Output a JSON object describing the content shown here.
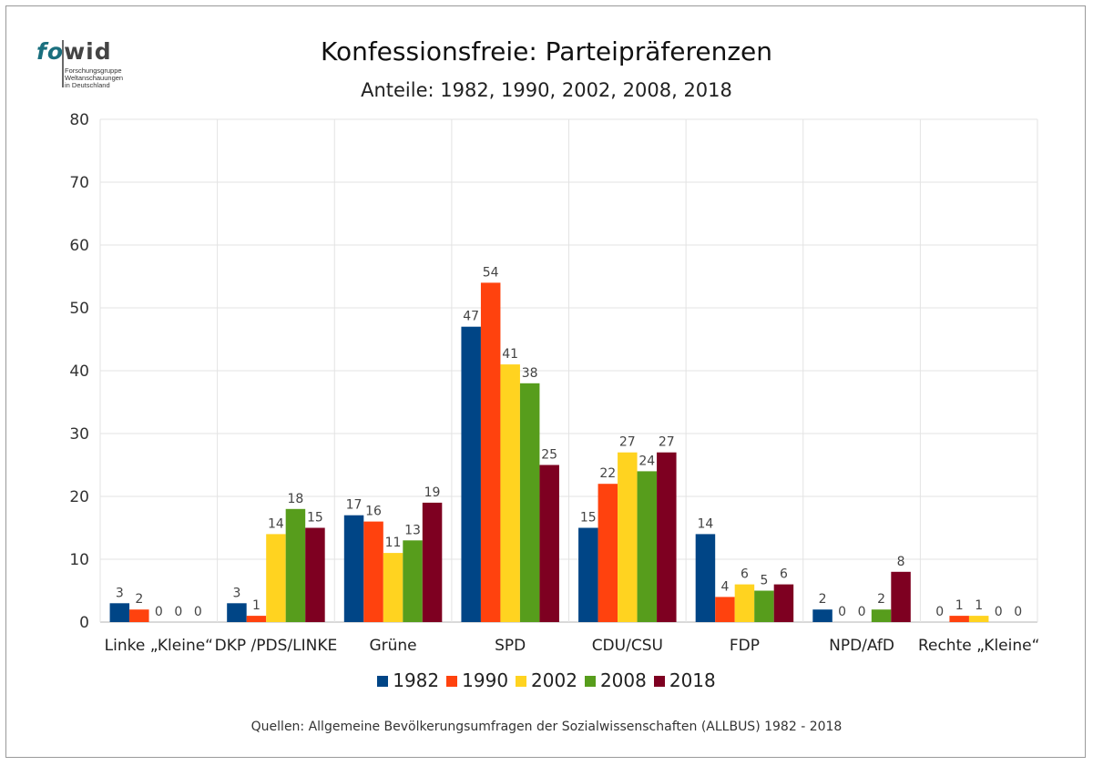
{
  "logo": {
    "word_a": "fo",
    "word_b": "wid",
    "sub_lines": [
      "Forschungsgruppe",
      "Weltanschauungen",
      "in Deutschland"
    ]
  },
  "header": {
    "title": "Konfessionsfreie: Parteipräferenzen",
    "subtitle": "Anteile: 1982, 1990, 2002, 2008, 2018"
  },
  "footer": {
    "source": "Quellen: Allgemeine Bevölkerungsumfragen der Sozialwissenschaften (ALLBUS) 1982 - 2018"
  },
  "chart_data": {
    "type": "bar",
    "title": "Konfessionsfreie: Parteipräferenzen",
    "subtitle": "Anteile: 1982, 1990, 2002, 2008, 2018",
    "categories": [
      "Linke „Kleine“",
      "DKP /PDS/LINKE",
      "Grüne",
      "SPD",
      "CDU/CSU",
      "FDP",
      "NPD/AfD",
      "Rechte „Kleine“"
    ],
    "series": [
      {
        "name": "1982",
        "color": "#004586",
        "values": [
          3,
          3,
          17,
          47,
          15,
          14,
          2,
          0
        ]
      },
      {
        "name": "1990",
        "color": "#ff420e",
        "values": [
          2,
          1,
          16,
          54,
          22,
          4,
          0,
          1
        ]
      },
      {
        "name": "2002",
        "color": "#ffd320",
        "values": [
          0,
          14,
          11,
          41,
          27,
          6,
          0,
          1
        ]
      },
      {
        "name": "2008",
        "color": "#579d1c",
        "values": [
          0,
          18,
          13,
          38,
          24,
          5,
          2,
          0
        ]
      },
      {
        "name": "2018",
        "color": "#7e0021",
        "values": [
          0,
          15,
          19,
          25,
          27,
          6,
          8,
          0
        ]
      }
    ],
    "xlabel": "",
    "ylabel": "",
    "ylim": [
      0,
      80
    ],
    "yticks": [
      0,
      10,
      20,
      30,
      40,
      50,
      60,
      70,
      80
    ],
    "grid": true,
    "legend_position": "bottom"
  }
}
